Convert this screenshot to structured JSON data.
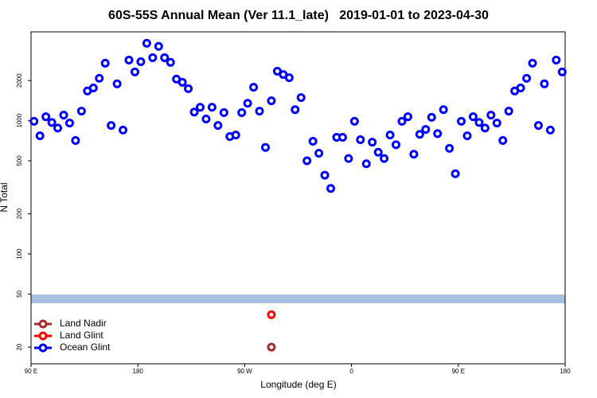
{
  "chart_data": {
    "type": "scatter",
    "title": "60S-55S Annual Mean (Ver 11.1_late)   2019-01-01 to 2023-04-30",
    "x_label": "Longitude (deg E)",
    "y_label": "N Total",
    "xlim": [
      90,
      540
    ],
    "ylim": [
      15,
      4640
    ],
    "log_y": true,
    "grid": false,
    "legend": "lower left",
    "xticks": [
      {
        "value": 90,
        "label": "90 E"
      },
      {
        "value": 180,
        "label": "180"
      },
      {
        "value": 270,
        "label": "90 W"
      },
      {
        "value": 360,
        "label": "0"
      },
      {
        "value": 450,
        "label": "90 E"
      },
      {
        "value": 540,
        "label": "180"
      }
    ],
    "yticks": [
      20,
      50,
      100,
      200,
      500,
      1000,
      2000
    ],
    "series": [
      {
        "name": "Land Nadir",
        "color": "#a52a2a",
        "x": [
          292.5
        ],
        "values": [
          20
        ]
      },
      {
        "name": "Land Glint",
        "color": "#ff0000",
        "x": [
          292.5
        ],
        "values": [
          35
        ]
      },
      {
        "name": "Ocean Glint",
        "color": "#0000ff",
        "x": [
          92.5,
          97.5,
          102.5,
          107.5,
          112.5,
          117.5,
          122.5,
          127.5,
          132.5,
          137.5,
          142.5,
          147.5,
          152.5,
          157.5,
          162.5,
          167.5,
          172.5,
          177.5,
          182.5,
          187.5,
          192.5,
          197.5,
          202.5,
          207.5,
          212.5,
          217.5,
          222.5,
          227.5,
          232.5,
          237.5,
          242.5,
          247.5,
          252.5,
          257.5,
          262.5,
          267.5,
          272.5,
          277.5,
          282.5,
          287.5,
          292.5,
          297.5,
          302.5,
          307.5,
          312.5,
          317.5,
          322.5,
          327.5,
          332.5,
          337.5,
          342.5,
          347.5,
          352.5,
          357.5,
          362.5,
          367.5,
          372.5,
          377.5,
          382.5,
          387.5,
          392.5,
          397.5,
          402.5,
          407.5,
          412.5,
          417.5,
          422.5,
          427.5,
          432.5,
          437.5,
          442.5,
          447.5,
          452.5,
          457.5,
          462.5,
          467.5,
          472.5,
          477.5,
          482.5,
          487.5,
          492.5,
          497.5,
          502.5,
          507.5,
          512.5,
          517.5,
          522.5,
          527.5,
          532.5,
          537.5
        ],
        "values": [
          990,
          770,
          1070,
          970,
          880,
          1100,
          960,
          710,
          1180,
          1670,
          1760,
          2080,
          2700,
          920,
          1890,
          850,
          2850,
          2320,
          2770,
          3810,
          2970,
          3610,
          2970,
          2740,
          2050,
          1940,
          1740,
          1160,
          1260,
          1030,
          1260,
          920,
          1150,
          760,
          780,
          1150,
          1350,
          1780,
          1180,
          630,
          1410,
          2350,
          2220,
          2100,
          1210,
          1490,
          500,
          700,
          570,
          390,
          310,
          750,
          750,
          520,
          990,
          720,
          475,
          690,
          580,
          520,
          780,
          660,
          990,
          1070,
          560,
          790,
          860,
          1060,
          800,
          1210,
          620,
          400,
          990,
          770,
          1070,
          970,
          880,
          1100,
          960,
          710,
          1180,
          1670,
          1760,
          2080,
          2700,
          920,
          1890,
          850,
          2850,
          2320
        ]
      }
    ]
  }
}
